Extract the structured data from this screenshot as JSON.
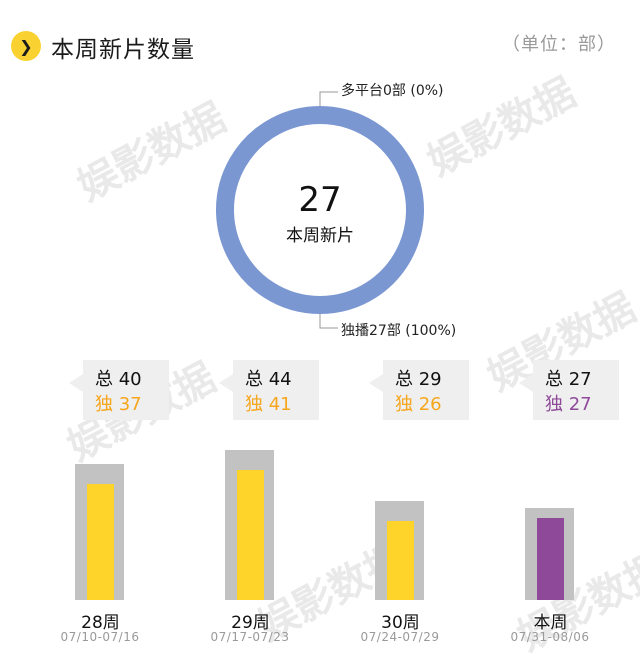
{
  "header": {
    "title": "本周新片数量",
    "unit": "（单位：部）",
    "badge_glyph": "❯"
  },
  "watermark": "娱影数据",
  "chart_data": [
    {
      "type": "pie",
      "variant": "donut",
      "center_value": "27",
      "center_label": "本周新片",
      "slices": [
        {
          "name": "多平台",
          "value": 0,
          "label": "多平台0部 (0%)",
          "color": "#7b97d2"
        },
        {
          "name": "独播",
          "value": 27,
          "label": "独播27部 (100%)",
          "color": "#7b97d2"
        }
      ]
    },
    {
      "type": "bar",
      "categories": [
        "28周",
        "29周",
        "30周",
        "本周"
      ],
      "date_ranges": [
        "07/10-07/16",
        "07/17-07/23",
        "07/24-07/29",
        "07/31-08/06"
      ],
      "series": [
        {
          "name": "总",
          "values": [
            40,
            44,
            29,
            27
          ],
          "color": "#c2c2c2"
        },
        {
          "name": "独",
          "values": [
            37,
            41,
            26,
            27
          ],
          "color": "#ffd42a",
          "current_color": "#8e4a99"
        }
      ],
      "stat_labels": {
        "total": "总",
        "exclusive": "独"
      }
    }
  ]
}
